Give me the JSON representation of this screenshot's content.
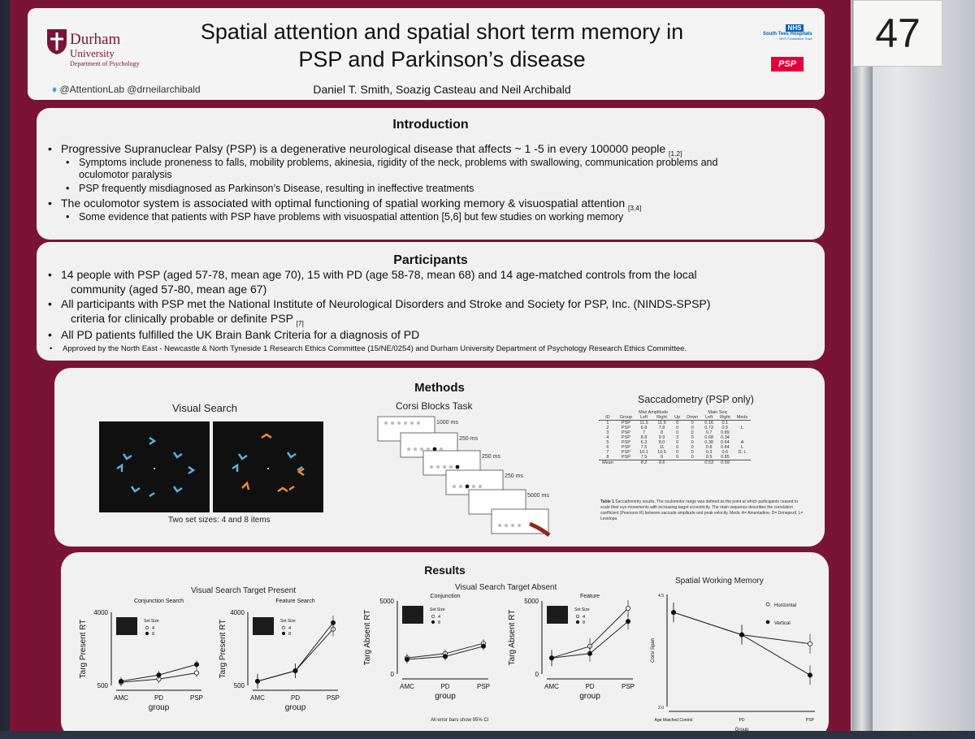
{
  "poster_number": "47",
  "header": {
    "title_line1": "Spatial attention and spatial short term memory in",
    "title_line2": "PSP and Parkinson’s disease",
    "authors": "Daniel T. Smith, Soazig Casteau and Neil Archibald",
    "university": "Durham",
    "university_sub": "University",
    "department": "Department of Psychology",
    "twitter": "@AttentionLab @drneilarchibald",
    "nhs_badge": "NHS",
    "nhs_name": "South Tees Hospitals",
    "nhs_sub": "NHS Foundation Trust",
    "psp_logo": "PSP"
  },
  "introduction": {
    "title": "Introduction",
    "b1": "Progressive Supranuclear Palsy (PSP) is a degenerative neurological disease that affects ~ 1 -5 in every 100000 people",
    "b1_ref": "[1,2]",
    "b1a": "Symptoms include proneness to falls, mobility problems, akinesia, rigidity of the neck, problems with swallowing, communication problems and",
    "b1a_cont": "oculomotor paralysis",
    "b1b": "PSP frequently misdiagnosed as Parkinson’s Disease, resulting in ineffective treatments",
    "b2": "The oculomotor system is associated with optimal functioning of spatial working memory & visuospatial attention",
    "b2_ref": "[3,4]",
    "b2a": "Some evidence that patients with PSP have problems with visuospatial attention [5,6] but few studies on working memory"
  },
  "participants": {
    "title": "Participants",
    "b1": "14 people with PSP (aged 57-78, mean age 70), 15 with PD (age 58-78, mean 68) and 14 age-matched controls from the local",
    "b1_cont": "community (aged 57-80, mean age 67)",
    "b2": "All participants with PSP met the National Institute of Neurological Disorders and Stroke and Society for PSP, Inc. (NINDS-SPSP)",
    "b2_cont": "criteria for clinically probable or definite PSP",
    "b2_ref": "[7]",
    "b3": "All PD patients fulfilled the UK Brain Bank Criteria for a diagnosis of PD",
    "b4": "Approved by the North East - Newcastle & North Tyneside 1 Research Ethics Committee (15/NE/0254) and Durham University Department of Psychology Research Ethics Committee."
  },
  "methods": {
    "title": "Methods",
    "visual_search": "Visual Search",
    "set_sizes": "Two set sizes: 4 and 8 items",
    "corsi": "Corsi Blocks Task",
    "corsi_times": [
      "1000 ms",
      "250 ms",
      "250 ms",
      "250 ms",
      "5000 ms"
    ],
    "saccadometry": "Saccadometry (PSP only)",
    "table_group_max": "Max Amplitude",
    "table_group_main": "Main Seq",
    "table_headers": [
      "ID",
      "Group",
      "Left",
      "Right",
      "Up",
      "Down",
      "Left",
      "Right",
      "Meds"
    ],
    "table_rows": [
      [
        "1",
        "PSP",
        "11.5",
        "11.5",
        "0",
        "0",
        "0.16",
        "0.1",
        ""
      ],
      [
        "2",
        "PSP",
        "6.8",
        "7.8",
        "0",
        "0",
        "0.73",
        "0.5",
        "L"
      ],
      [
        "3",
        "PSP",
        "7",
        "8",
        "0",
        "0",
        "0.7",
        "0.89",
        ""
      ],
      [
        "4",
        "PSP",
        "8.8",
        "9.9",
        "3",
        "0",
        "0.68",
        "0.34",
        ""
      ],
      [
        "5",
        "PSP",
        "6.3",
        "8.0",
        "0",
        "0",
        "0.38",
        "0.64",
        "A"
      ],
      [
        "6",
        "PSP",
        "7.5",
        "11",
        "0",
        "0",
        "0.8",
        "0.84",
        "L"
      ],
      [
        "7",
        "PSP",
        "10.1",
        "10.5",
        "0",
        "0",
        "0.3",
        "0.6",
        "D, L"
      ],
      [
        "8",
        "PSP",
        "7.5",
        "9",
        "0",
        "0",
        "0.5",
        "0.85",
        ""
      ]
    ],
    "table_mean": [
      "Mean",
      "",
      "8.2",
      "9.6",
      "",
      "",
      "0.53",
      "0.59",
      ""
    ],
    "table_caption_bold": "Table 1",
    "table_caption": "Saccadometry results. The oculomotor range was defined as the point at which participants ceased to scale their eye-movements with increasing target eccentricity. The main sequence describes the correlation coefficient (Pearsons R) between saccade amplitude and peak velocity. Meds: A= Amantadine, D= Donepezil, L= Levidopa"
  },
  "results": {
    "title": "Results",
    "present_title": "Visual Search Target Present",
    "absent_title": "Visual Search Target Absent",
    "swm_title": "Spatial Working Memory",
    "error_note": "All error bars show 95% CI"
  },
  "chart_data": [
    {
      "type": "line",
      "title": "Conjunction Search",
      "xlabel": "group",
      "ylabel": "Targ Present RT",
      "categories": [
        "AMC",
        "PD",
        "PSP"
      ],
      "ylim": [
        500,
        4000
      ],
      "yticks": [
        "500",
        "4000"
      ],
      "legend_title": "Set Size",
      "series": [
        {
          "name": "4",
          "values": [
            650,
            800,
            1100
          ]
        },
        {
          "name": "8",
          "values": [
            700,
            1000,
            1500
          ]
        }
      ]
    },
    {
      "type": "line",
      "title": "Feature Search",
      "xlabel": "group",
      "ylabel": "Targ Present RT",
      "categories": [
        "AMC",
        "PD",
        "PSP"
      ],
      "ylim": [
        500,
        4000
      ],
      "yticks": [
        "500",
        "4000"
      ],
      "legend_title": "Set Size",
      "series": [
        {
          "name": "4",
          "values": [
            700,
            1200,
            3200
          ]
        },
        {
          "name": "8",
          "values": [
            700,
            1200,
            3500
          ]
        }
      ]
    },
    {
      "type": "line",
      "title": "Conjunction",
      "xlabel": "group",
      "ylabel": "Targ Absent RT",
      "categories": [
        "AMC",
        "PD",
        "PSP"
      ],
      "ylim": [
        0,
        5000
      ],
      "yticks": [
        "0",
        "5000"
      ],
      "legend_title": "Set Size",
      "series": [
        {
          "name": "4",
          "values": [
            1100,
            1400,
            2100
          ]
        },
        {
          "name": "8",
          "values": [
            1000,
            1200,
            1900
          ]
        }
      ]
    },
    {
      "type": "line",
      "title": "Feature",
      "xlabel": "group",
      "ylabel": "Targ Absent RT",
      "categories": [
        "AMC",
        "PD",
        "PSP"
      ],
      "ylim": [
        0,
        5000
      ],
      "yticks": [
        "0",
        "5000"
      ],
      "legend_title": "Set Size",
      "series": [
        {
          "name": "4",
          "values": [
            1100,
            1900,
            4500
          ]
        },
        {
          "name": "8",
          "values": [
            1100,
            1400,
            3600
          ]
        }
      ]
    },
    {
      "type": "line",
      "title": "",
      "xlabel": "Group",
      "ylabel": "Corsi Span",
      "categories": [
        "Age Matched Control",
        "PD",
        "PSP"
      ],
      "ylim": [
        2.0,
        4.5
      ],
      "yticks": [
        "2.0",
        "4.5"
      ],
      "series": [
        {
          "name": "Horizontal",
          "values": [
            4.1,
            3.6,
            3.4
          ]
        },
        {
          "name": "Vertical",
          "values": [
            4.1,
            3.6,
            2.7
          ]
        }
      ]
    }
  ]
}
